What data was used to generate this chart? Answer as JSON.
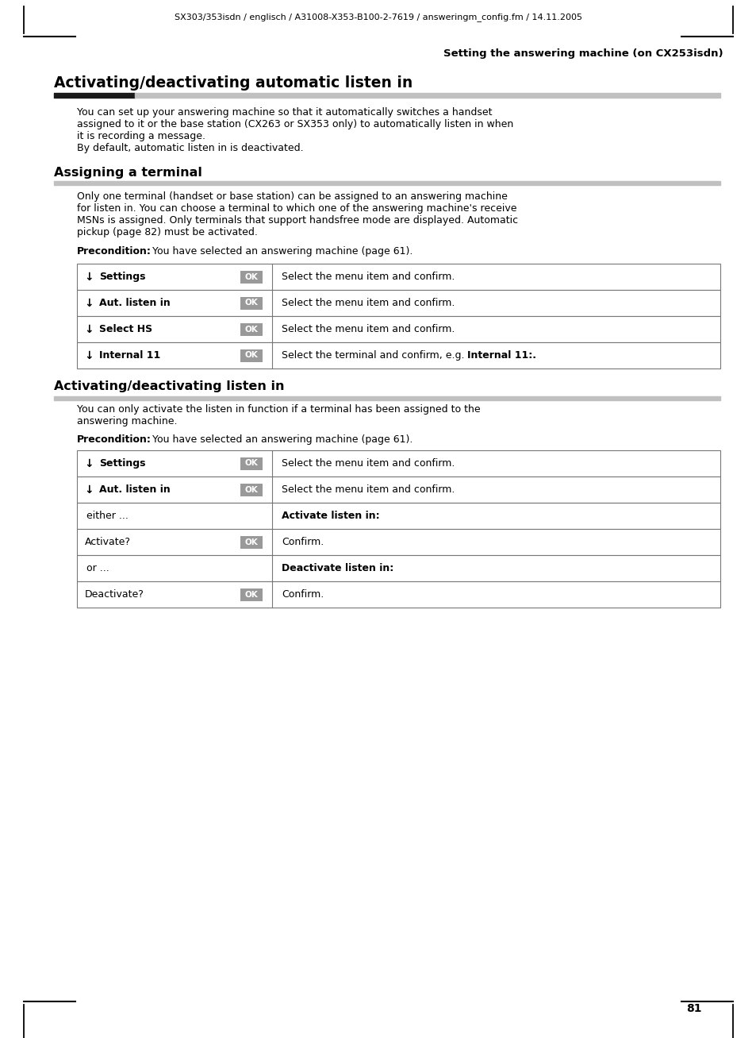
{
  "page_bg": "#ffffff",
  "header_text": "SX303/353isdn / englisch / A31008-X353-B100-2-7619 / answeringm_config.fm / 14.11.2005",
  "section_title": "Setting the answering machine (on CX253isdn)",
  "heading1": "Activating/deactivating automatic listen in",
  "para1_lines": [
    "You can set up your answering machine so that it automatically switches a handset",
    "assigned to it or the base station (CX263 or SX353 only) to automatically listen in when",
    "it is recording a message.",
    "By default, automatic listen in is deactivated."
  ],
  "heading2": "Assigning a terminal",
  "para2_lines": [
    "Only one terminal (handset or base station) can be assigned to an answering machine",
    "for listen in. You can choose a terminal to which one of the answering machine's receive",
    "MSNs is assigned. Only terminals that support handsfree mode are displayed. Automatic",
    "pickup (page 82) must be activated."
  ],
  "precondition_label": "Precondition:",
  "precondition_rest": " You have selected an answering machine (page 61).",
  "table1_rows": [
    {
      "arrow": true,
      "left": "Settings",
      "ok": true,
      "right_normal": "Select the menu item and confirm.",
      "right_bold": ""
    },
    {
      "arrow": true,
      "left": "Aut. listen in",
      "ok": true,
      "right_normal": "Select the menu item and confirm.",
      "right_bold": ""
    },
    {
      "arrow": true,
      "left": "Select HS",
      "ok": true,
      "right_normal": "Select the menu item and confirm.",
      "right_bold": ""
    },
    {
      "arrow": true,
      "left": "Internal 11",
      "ok": true,
      "right_normal": "Select the terminal and confirm, e.g. ",
      "right_bold": "Internal 11:."
    }
  ],
  "heading3": "Activating/deactivating listen in",
  "para3_lines": [
    "You can only activate the listen in function if a terminal has been assigned to the",
    "answering machine."
  ],
  "table2_rows": [
    {
      "arrow": true,
      "left": "Settings",
      "ok": true,
      "right_normal": "Select the menu item and confirm.",
      "right_bold": "",
      "left_plain": false,
      "indent": false
    },
    {
      "arrow": true,
      "left": "Aut. listen in",
      "ok": true,
      "right_normal": "Select the menu item and confirm.",
      "right_bold": "",
      "left_plain": false,
      "indent": false
    },
    {
      "arrow": false,
      "left": "either ...",
      "ok": false,
      "right_normal": "",
      "right_bold": "Activate listen in:",
      "left_plain": true,
      "indent": true
    },
    {
      "arrow": false,
      "left": "Activate?",
      "ok": true,
      "right_normal": "Confirm.",
      "right_bold": "",
      "left_plain": false,
      "indent": false
    },
    {
      "arrow": false,
      "left": "or ...",
      "ok": false,
      "right_normal": "",
      "right_bold": "Deactivate listen in:",
      "left_plain": true,
      "indent": true
    },
    {
      "arrow": false,
      "left": "Deactivate?",
      "ok": true,
      "right_normal": "Confirm.",
      "right_bold": "",
      "left_plain": false,
      "indent": false
    }
  ],
  "page_number": "81",
  "ok_bg": "#999999",
  "table_border": "#777777",
  "bar_black": "#1a1a1a",
  "bar_gray": "#c0c0c0",
  "line_color": "#333333"
}
